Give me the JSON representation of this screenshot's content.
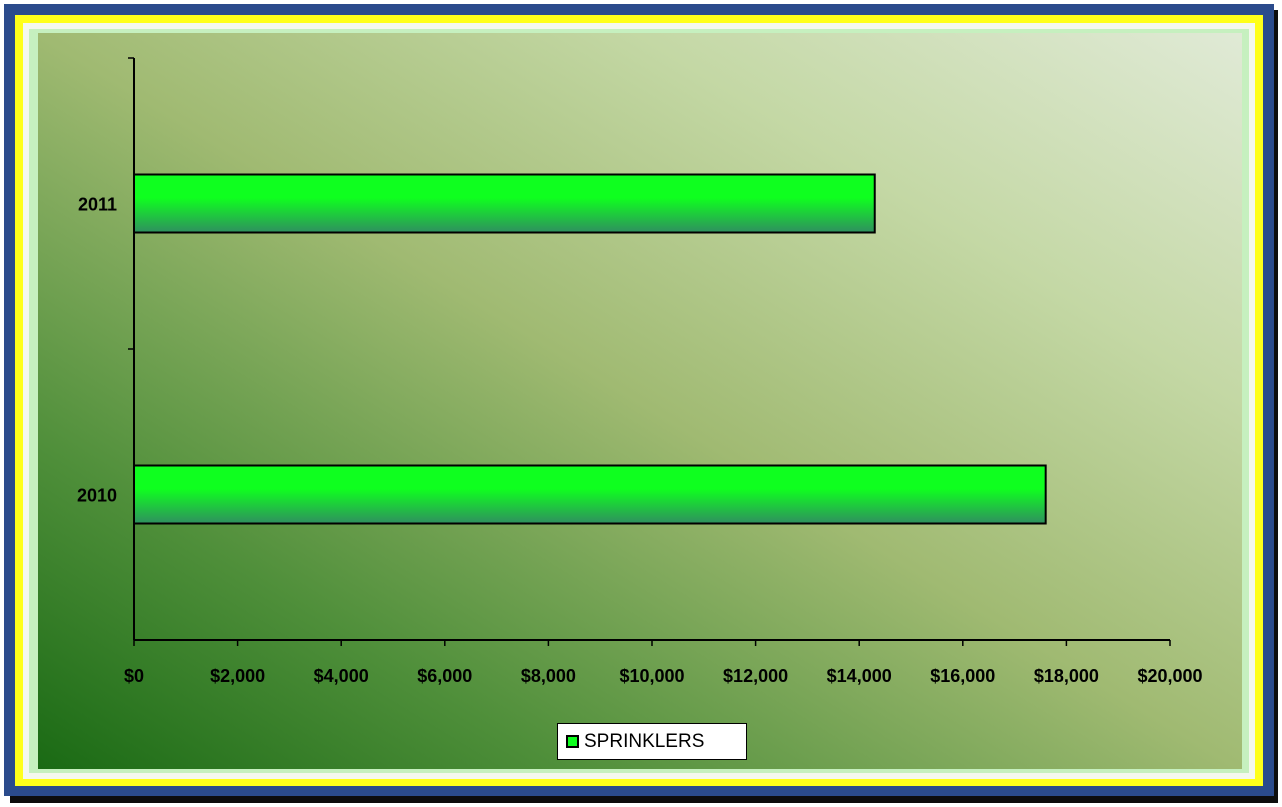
{
  "chart_data": {
    "type": "bar",
    "orientation": "horizontal",
    "categories": [
      "2011",
      "2010"
    ],
    "series": [
      {
        "name": "SPRINKLERS",
        "values": [
          14300,
          17600
        ]
      }
    ],
    "x_tick_labels": [
      "$0",
      "$2,000",
      "$4,000",
      "$6,000",
      "$8,000",
      "$10,000",
      "$12,000",
      "$14,000",
      "$16,000",
      "$18,000",
      "$20,000"
    ],
    "xlim": [
      0,
      20000
    ],
    "xlabel": "",
    "ylabel": "",
    "grid": false,
    "legend_position": "bottom-center"
  },
  "colors": {
    "bar_top": "#0fff1f",
    "bar_bottom": "#2f8f5f",
    "frame_blue": "#2b4b8c",
    "frame_yellow": "#ffff1a"
  }
}
